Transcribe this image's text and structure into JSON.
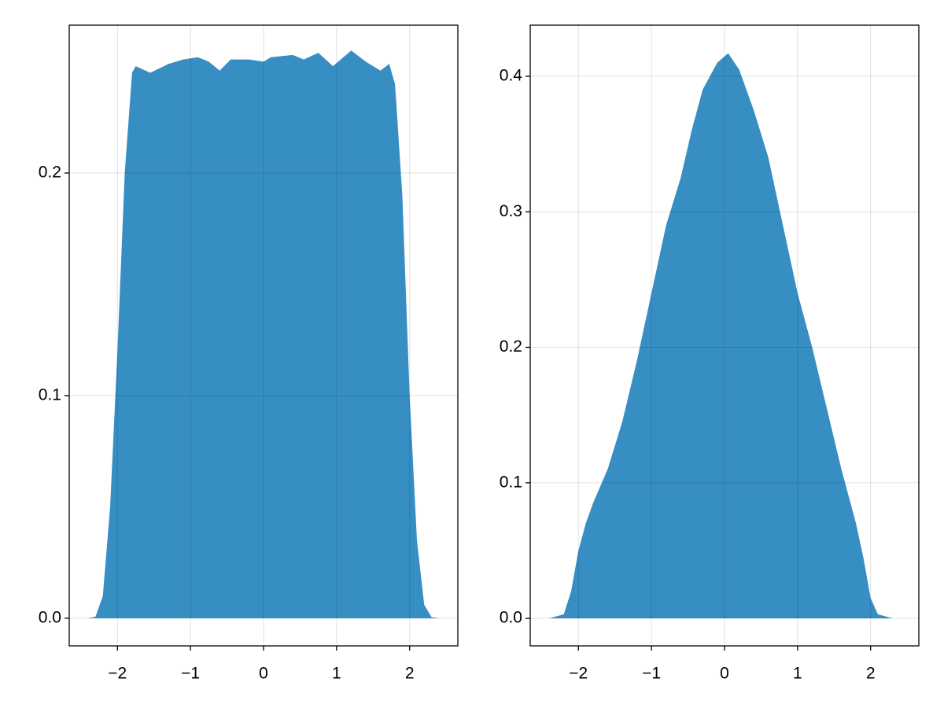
{
  "chart_data": [
    {
      "type": "area",
      "color": "#368ec2",
      "grid": true,
      "x": [
        -2.4,
        -2.3,
        -2.2,
        -2.1,
        -2.0,
        -1.9,
        -1.8,
        -1.75,
        -1.55,
        -1.3,
        -1.1,
        -0.9,
        -0.75,
        -0.6,
        -0.45,
        -0.2,
        0.0,
        0.1,
        0.4,
        0.55,
        0.75,
        0.95,
        1.2,
        1.4,
        1.6,
        1.72,
        1.8,
        1.9,
        2.0,
        2.1,
        2.2,
        2.3,
        2.4
      ],
      "values": [
        0,
        0.0007,
        0.01,
        0.05,
        0.12,
        0.2,
        0.245,
        0.248,
        0.245,
        0.249,
        0.251,
        0.252,
        0.25,
        0.246,
        0.251,
        0.251,
        0.25,
        0.252,
        0.253,
        0.251,
        0.254,
        0.248,
        0.255,
        0.25,
        0.246,
        0.249,
        0.24,
        0.19,
        0.1,
        0.035,
        0.006,
        0.0005,
        0
      ],
      "xlim": [
        -2.66,
        2.66
      ],
      "ylim": [
        -0.0124,
        0.2664
      ],
      "xticks": [
        {
          "value": -2,
          "label": "−2"
        },
        {
          "value": -1,
          "label": "−1"
        },
        0,
        1,
        2
      ],
      "yticks": [
        {
          "value": 0,
          "label": "0.0"
        },
        0.1,
        0.2
      ]
    },
    {
      "type": "area",
      "color": "#368ec2",
      "grid": true,
      "x": [
        -2.4,
        -2.2,
        -2.1,
        -2.0,
        -1.9,
        -1.8,
        -1.6,
        -1.4,
        -1.2,
        -1.0,
        -0.8,
        -0.6,
        -0.45,
        -0.3,
        -0.1,
        0.05,
        0.2,
        0.4,
        0.6,
        0.8,
        1.0,
        1.2,
        1.4,
        1.6,
        1.8,
        1.9,
        2.0,
        2.1,
        2.3
      ],
      "values": [
        0,
        0.003,
        0.02,
        0.05,
        0.07,
        0.085,
        0.11,
        0.145,
        0.19,
        0.24,
        0.29,
        0.325,
        0.36,
        0.39,
        0.41,
        0.417,
        0.405,
        0.375,
        0.34,
        0.29,
        0.24,
        0.2,
        0.155,
        0.11,
        0.07,
        0.045,
        0.015,
        0.003,
        0
      ],
      "xlim": [
        -2.66,
        2.66
      ],
      "ylim": [
        -0.0203,
        0.4377
      ],
      "xticks": [
        {
          "value": -2,
          "label": "−2"
        },
        {
          "value": -1,
          "label": "−1"
        },
        0,
        1,
        2
      ],
      "yticks": [
        {
          "value": 0,
          "label": "0.0"
        },
        0.1,
        0.2,
        0.3,
        0.4
      ]
    }
  ]
}
